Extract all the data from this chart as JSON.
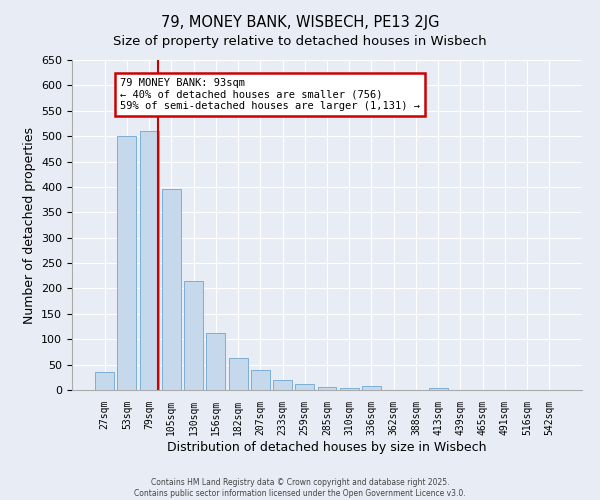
{
  "title": "79, MONEY BANK, WISBECH, PE13 2JG",
  "subtitle": "Size of property relative to detached houses in Wisbech",
  "xlabel": "Distribution of detached houses by size in Wisbech",
  "ylabel": "Number of detached properties",
  "categories": [
    "27sqm",
    "53sqm",
    "79sqm",
    "105sqm",
    "130sqm",
    "156sqm",
    "182sqm",
    "207sqm",
    "233sqm",
    "259sqm",
    "285sqm",
    "310sqm",
    "336sqm",
    "362sqm",
    "388sqm",
    "413sqm",
    "439sqm",
    "465sqm",
    "491sqm",
    "516sqm",
    "542sqm"
  ],
  "values": [
    35,
    500,
    510,
    395,
    215,
    112,
    63,
    40,
    20,
    12,
    5,
    3,
    8,
    0,
    0,
    3,
    0,
    0,
    0,
    0,
    0
  ],
  "bar_color": "#c6d9ec",
  "bar_edge_color": "#7aafd4",
  "vline_color": "#cc0000",
  "vline_position": 2.4,
  "ylim": [
    0,
    650
  ],
  "yticks": [
    0,
    50,
    100,
    150,
    200,
    250,
    300,
    350,
    400,
    450,
    500,
    550,
    600,
    650
  ],
  "annotation_title": "79 MONEY BANK: 93sqm",
  "annotation_line1": "← 40% of detached houses are smaller (756)",
  "annotation_line2": "59% of semi-detached houses are larger (1,131) →",
  "annotation_box_color": "#cc0000",
  "footer1": "Contains HM Land Registry data © Crown copyright and database right 2025.",
  "footer2": "Contains public sector information licensed under the Open Government Licence v3.0.",
  "bg_color": "#e8edf5",
  "grid_color": "#ffffff",
  "title_fontsize": 10.5,
  "subtitle_fontsize": 9.5
}
